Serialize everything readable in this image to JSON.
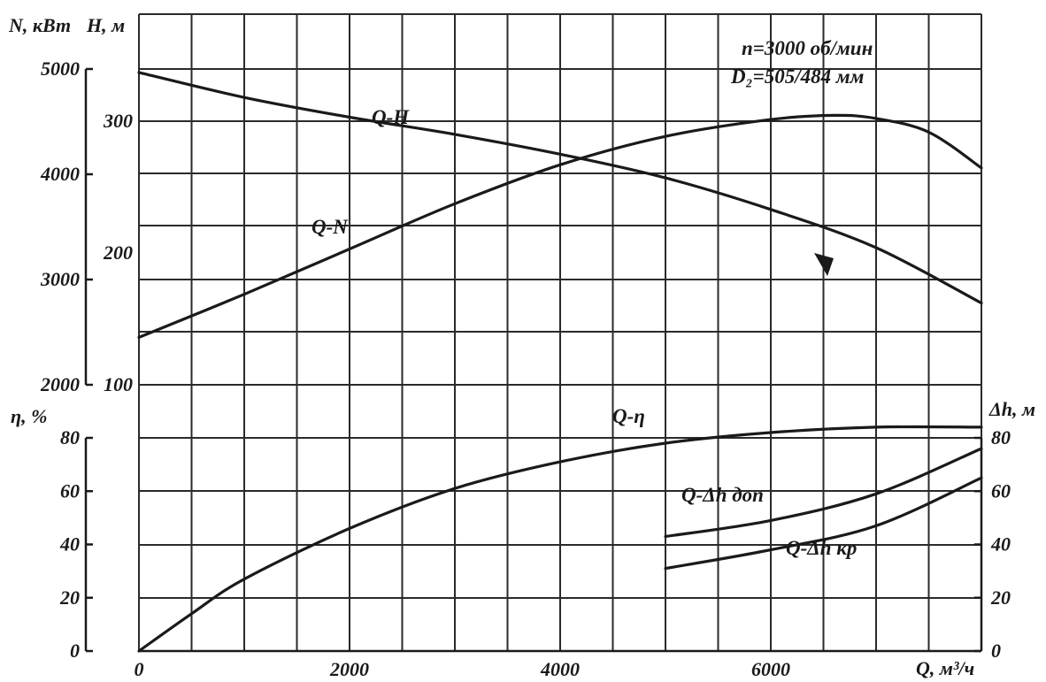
{
  "chart_data": {
    "type": "line",
    "annotations": {
      "speed": "n=3000 об/мин",
      "impeller": "D₂=505/484 мм"
    },
    "x_axis": {
      "title": "Q, м³/ч",
      "range": [
        0,
        8000
      ],
      "ticks": [
        "0",
        "2000",
        "4000",
        "6000"
      ]
    },
    "y_axes": {
      "N": {
        "title": "N, кВт",
        "range": [
          2000,
          5000
        ],
        "ticks": [
          "2000",
          "3000",
          "4000",
          "5000"
        ]
      },
      "H": {
        "title": "H, м",
        "range": [
          100,
          300
        ],
        "ticks": [
          "100",
          "200",
          "300"
        ]
      },
      "eta": {
        "title": "η, %",
        "range": [
          0,
          80
        ],
        "ticks": [
          "0",
          "20",
          "40",
          "60",
          "80"
        ]
      },
      "dh": {
        "title": "Δh, м",
        "range": [
          0,
          80
        ],
        "ticks": [
          "0",
          "20",
          "40",
          "60",
          "80"
        ]
      }
    },
    "grid": true,
    "series": [
      {
        "name": "Q-H",
        "axis": "H",
        "x": [
          0,
          1000,
          2000,
          3000,
          4000,
          5000,
          6000,
          7000,
          8000
        ],
        "y": [
          337,
          318,
          303,
          290,
          275,
          257,
          233,
          204,
          162
        ]
      },
      {
        "name": "Q-N",
        "axis": "N",
        "x": [
          0,
          1000,
          2000,
          3000,
          4000,
          5000,
          6000,
          6600,
          7000,
          7500,
          8000
        ],
        "y": [
          2450,
          2860,
          3290,
          3720,
          4090,
          4360,
          4520,
          4560,
          4530,
          4400,
          4060
        ]
      },
      {
        "name": "Q-η",
        "axis": "eta",
        "x": [
          0,
          500,
          1000,
          2000,
          3000,
          4000,
          5000,
          6000,
          7000,
          8000
        ],
        "y": [
          0,
          14,
          27,
          46,
          61,
          71,
          78,
          82,
          84,
          84
        ]
      },
      {
        "name": "Q-Δh доп",
        "axis": "dh",
        "x": [
          5000,
          6000,
          7000,
          8000
        ],
        "y": [
          43,
          49,
          59,
          76
        ]
      },
      {
        "name": "Q-Δh кр",
        "axis": "dh",
        "x": [
          5000,
          6000,
          7000,
          8000
        ],
        "y": [
          31,
          38,
          47,
          65
        ]
      }
    ]
  }
}
